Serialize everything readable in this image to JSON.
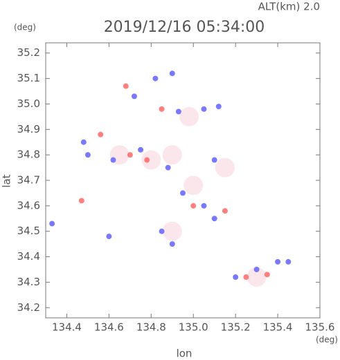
{
  "chart_data": {
    "type": "scatter",
    "title": "2019/12/16 05:34:00",
    "altitude_label": "ALT(km)  2.0",
    "y_unit": "(deg)",
    "x_unit": "(deg)",
    "xlabel": "lon",
    "ylabel": "lat",
    "xlim": [
      134.3,
      135.6
    ],
    "ylim": [
      34.16,
      35.24
    ],
    "xticks": [
      134.4,
      134.6,
      134.8,
      {
        "value": 135,
        "label": "135.0"
      },
      135.2,
      135.4,
      135.6
    ],
    "yticks": [
      34.2,
      34.3,
      34.4,
      34.5,
      34.6,
      34.7,
      34.8,
      34.9,
      {
        "value": 35,
        "label": "35.0"
      },
      35.1,
      35.2
    ],
    "series": [
      {
        "color": "#fbe3ea",
        "x": [
          134.65,
          134.9,
          135.0,
          135.15,
          135.3,
          134.98,
          134.9,
          134.8
        ],
        "y": [
          34.8,
          34.8,
          34.68,
          34.75,
          34.32,
          34.95,
          34.5,
          34.78
        ]
      },
      {
        "color": "#6a6aff",
        "x": [
          134.72,
          134.82,
          134.9,
          135.05,
          135.12,
          134.93,
          134.5,
          134.62,
          134.75,
          134.88,
          135.1,
          135.05,
          134.95,
          135.1,
          134.85,
          134.9,
          134.6,
          135.2,
          135.3,
          135.4,
          135.45,
          134.33,
          134.48
        ],
        "y": [
          35.03,
          35.1,
          35.12,
          34.98,
          34.99,
          34.97,
          34.8,
          34.78,
          34.82,
          34.75,
          34.78,
          34.6,
          34.65,
          34.55,
          34.5,
          34.45,
          34.48,
          34.32,
          34.35,
          34.38,
          34.38,
          34.53,
          34.85
        ]
      },
      {
        "color": "#ff7070",
        "x": [
          134.68,
          134.85,
          134.7,
          134.78,
          135.0,
          135.15,
          134.47,
          135.25,
          135.35,
          134.56
        ],
        "y": [
          35.07,
          34.98,
          34.8,
          34.78,
          34.6,
          34.58,
          34.62,
          34.32,
          34.33,
          34.88
        ]
      }
    ]
  }
}
